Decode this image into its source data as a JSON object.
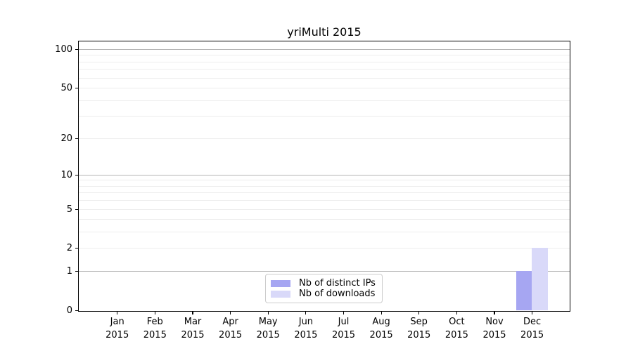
{
  "title": "yriMulti 2015",
  "chart_data": {
    "type": "bar",
    "title": "yriMulti 2015",
    "categories": [
      "Jan 2015",
      "Feb 2015",
      "Mar 2015",
      "Apr 2015",
      "May 2015",
      "Jun 2015",
      "Jul 2015",
      "Aug 2015",
      "Sep 2015",
      "Oct 2015",
      "Nov 2015",
      "Dec 2015"
    ],
    "x_tick_line1": [
      "Jan",
      "Feb",
      "Mar",
      "Apr",
      "May",
      "Jun",
      "Jul",
      "Aug",
      "Sep",
      "Oct",
      "Nov",
      "Dec"
    ],
    "x_tick_line2": "2015",
    "series": [
      {
        "name": "Nb of distinct IPs",
        "color": "#a6a6f2",
        "values": [
          0,
          0,
          0,
          0,
          0,
          0,
          0,
          0,
          0,
          0,
          0,
          1
        ]
      },
      {
        "name": "Nb of downloads",
        "color": "#d9d9f9",
        "values": [
          0,
          0,
          0,
          0,
          0,
          0,
          0,
          0,
          0,
          0,
          0,
          2
        ]
      }
    ],
    "y_axis": {
      "scale": "log10(1+x)",
      "tick_labels": [
        "0",
        "1",
        "2",
        "5",
        "10",
        "20",
        "50",
        "100"
      ],
      "tick_values": [
        0,
        1,
        2,
        5,
        10,
        20,
        50,
        100
      ],
      "major_gridlines": [
        1,
        10,
        100
      ],
      "minor_gridlines": [
        2,
        3,
        4,
        5,
        6,
        7,
        8,
        9,
        20,
        30,
        40,
        50,
        60,
        70,
        80,
        90
      ],
      "ylim": [
        0,
        115
      ]
    },
    "legend": {
      "position": "lower center"
    },
    "colors": {
      "grid_major": "#b5b5b5",
      "grid_minor": "#ededed",
      "axis": "#000000",
      "background": "#ffffff"
    }
  }
}
